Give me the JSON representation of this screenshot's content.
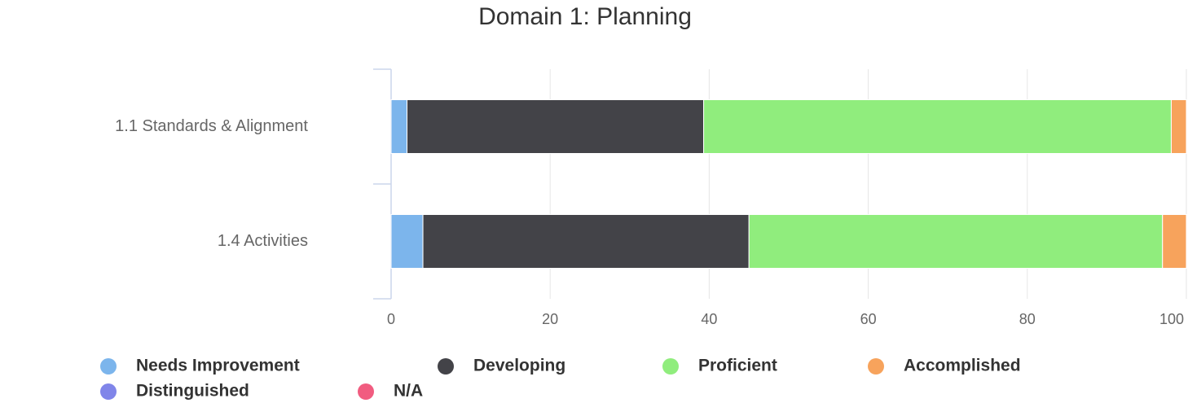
{
  "chart_data": {
    "type": "stacked-bar-horizontal",
    "title": "Domain 1: Planning",
    "categories": [
      "1.1 Standards & Alignment",
      "1.4 Activities"
    ],
    "series": [
      {
        "name": "Needs Improvement",
        "color": "#7cb5ec",
        "values": [
          2,
          4
        ]
      },
      {
        "name": "Developing",
        "color": "#434348",
        "values": [
          37.3,
          41
        ]
      },
      {
        "name": "Proficient",
        "color": "#90ed7d",
        "values": [
          58.8,
          52
        ]
      },
      {
        "name": "Accomplished",
        "color": "#f7a35c",
        "values": [
          1.9,
          3
        ]
      },
      {
        "name": "Distinguished",
        "color": "#8085e9",
        "values": [
          0,
          0
        ]
      },
      {
        "name": "N/A",
        "color": "#f15c80",
        "values": [
          0,
          0
        ]
      }
    ],
    "xlim": [
      0,
      100
    ],
    "xticks": [
      0,
      20,
      40,
      60,
      80,
      100
    ],
    "grid": true
  }
}
